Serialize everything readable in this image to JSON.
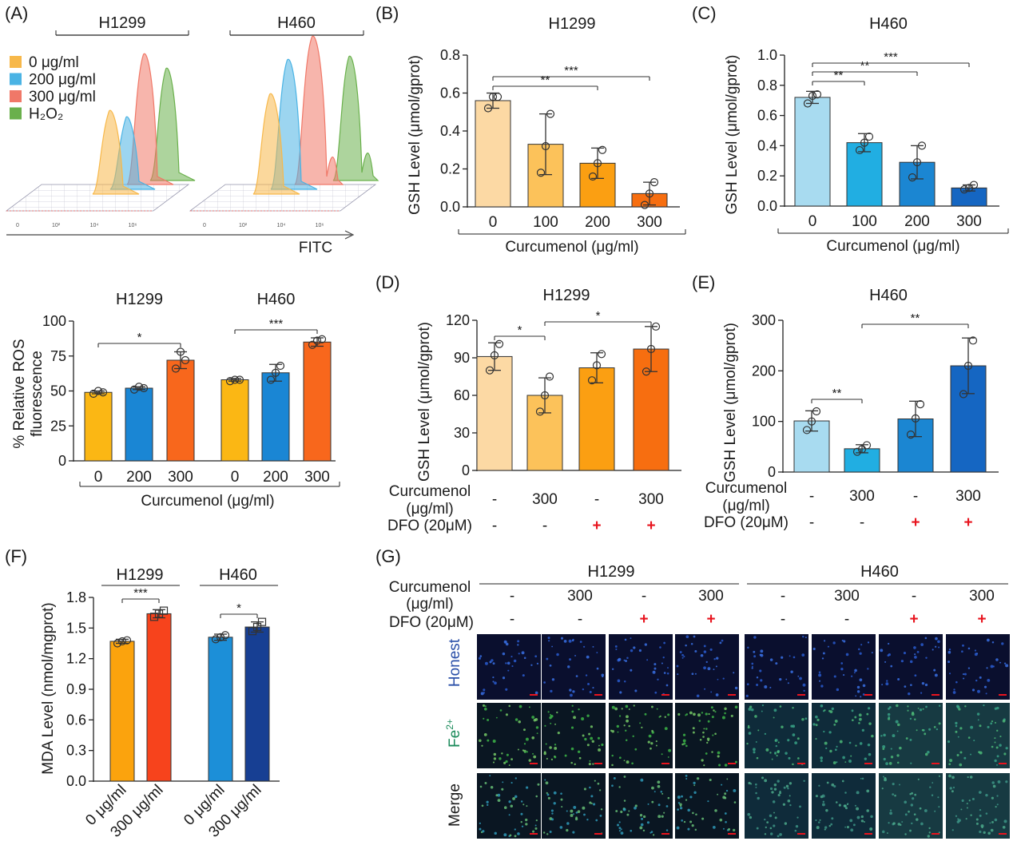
{
  "chart_data": [
    {
      "panel": "(A)",
      "type": "histogram",
      "subtype": "flow-cytometry-3d-overlay",
      "groups": [
        "H1299",
        "H460"
      ],
      "legend": [
        {
          "label": "0 μg/ml",
          "color": "#f7b84a"
        },
        {
          "label": "200 μg/ml",
          "color": "#4ab3e4"
        },
        {
          "label": "300 μg/ml",
          "color": "#f07868"
        },
        {
          "label": "H₂O₂",
          "color": "#6ab04c"
        }
      ],
      "xlabel": "FITC",
      "xticks": [
        "0",
        "10²",
        "10⁴",
        "10⁶"
      ]
    },
    {
      "panel": "(A) lower",
      "type": "bar",
      "ylabel": "% Relative ROS fluorescence",
      "xlabel": "Curcumenol (μg/ml)",
      "ylim": [
        0,
        100
      ],
      "yticks": [
        0,
        25,
        50,
        75,
        100
      ],
      "groups": [
        {
          "name": "H1299",
          "categories": [
            "0",
            "200",
            "300"
          ],
          "values": [
            49,
            52,
            72
          ],
          "errors": [
            1,
            1,
            6
          ],
          "points": [
            [
              48,
              50,
              49
            ],
            [
              51,
              53,
              52
            ],
            [
              66,
              78,
              72
            ]
          ],
          "colors": [
            "#fbb714",
            "#1a86d4",
            "#f8671c"
          ],
          "sig": [
            {
              "from": 0,
              "to": 2,
              "label": "*"
            }
          ]
        },
        {
          "name": "H460",
          "categories": [
            "0",
            "200",
            "300"
          ],
          "values": [
            58,
            63,
            85
          ],
          "errors": [
            1,
            6,
            3
          ],
          "points": [
            [
              57,
              58,
              58
            ],
            [
              58,
              63,
              68
            ],
            [
              83,
              86,
              87
            ]
          ],
          "colors": [
            "#fbb714",
            "#1a86d4",
            "#f8671c"
          ],
          "sig": [
            {
              "from": 0,
              "to": 2,
              "label": "***"
            }
          ]
        }
      ]
    },
    {
      "panel": "(B)",
      "type": "bar",
      "title": "H1299",
      "ylabel": "GSH Level (μmol/gprot)",
      "xlabel": "Curcumenol (μg/ml)",
      "ylim": [
        0,
        0.8
      ],
      "yticks": [
        0.0,
        0.2,
        0.4,
        0.6,
        0.8
      ],
      "categories": [
        "0",
        "100",
        "200",
        "300"
      ],
      "values": [
        0.56,
        0.33,
        0.23,
        0.07
      ],
      "errors": [
        0.04,
        0.16,
        0.08,
        0.06
      ],
      "points": [
        [
          0.52,
          0.58,
          0.58
        ],
        [
          0.18,
          0.32,
          0.49
        ],
        [
          0.16,
          0.23,
          0.3
        ],
        [
          0.01,
          0.07,
          0.13
        ]
      ],
      "colors": [
        "#fcd9a4",
        "#fcc25a",
        "#fb9f12",
        "#f76e10"
      ],
      "sig": [
        {
          "from": 0,
          "to": 2,
          "label": "**"
        },
        {
          "from": 0,
          "to": 3,
          "label": "***"
        }
      ]
    },
    {
      "panel": "(C)",
      "type": "bar",
      "title": "H460",
      "ylabel": "GSH Level (μmol/gprot)",
      "xlabel": "Curcumenol (μg/ml)",
      "ylim": [
        0,
        1.0
      ],
      "yticks": [
        0.0,
        0.2,
        0.4,
        0.6,
        0.8,
        1.0
      ],
      "categories": [
        "0",
        "100",
        "200",
        "300"
      ],
      "values": [
        0.72,
        0.42,
        0.29,
        0.12
      ],
      "errors": [
        0.04,
        0.06,
        0.11,
        0.02
      ],
      "points": [
        [
          0.68,
          0.73,
          0.74
        ],
        [
          0.37,
          0.42,
          0.46
        ],
        [
          0.19,
          0.29,
          0.4
        ],
        [
          0.11,
          0.12,
          0.14
        ]
      ],
      "colors": [
        "#a8dbf0",
        "#21aee2",
        "#1b86d2",
        "#1566c2"
      ],
      "sig": [
        {
          "from": 0,
          "to": 1,
          "label": "**"
        },
        {
          "from": 0,
          "to": 2,
          "label": "**"
        },
        {
          "from": 0,
          "to": 3,
          "label": "***"
        }
      ]
    },
    {
      "panel": "(D)",
      "type": "bar",
      "title": "H1299",
      "ylabel": "GSH Level (μmol/gprot)",
      "ylim": [
        0,
        120
      ],
      "yticks": [
        0,
        30,
        60,
        90,
        120
      ],
      "rows": [
        {
          "label": "Curcumenol",
          "unit": "(μg/ml)",
          "values": [
            "-",
            "300",
            "-",
            "300"
          ]
        },
        {
          "label": "DFO (20μM)",
          "values": [
            "-",
            "-",
            "+",
            "+"
          ]
        }
      ],
      "values": [
        91,
        60,
        82,
        97
      ],
      "errors": [
        11,
        14,
        12,
        18
      ],
      "points": [
        [
          80,
          92,
          101
        ],
        [
          47,
          60,
          75
        ],
        [
          72,
          84,
          93
        ],
        [
          79,
          97,
          115
        ]
      ],
      "colors": [
        "#fcd9a4",
        "#fcc25a",
        "#fb9f12",
        "#f76e10"
      ],
      "sig": [
        {
          "from": 0,
          "to": 1,
          "label": "*"
        },
        {
          "from": 1,
          "to": 3,
          "label": "*"
        }
      ]
    },
    {
      "panel": "(E)",
      "type": "bar",
      "title": "H460",
      "ylabel": "GSH Level (μmol/gprot)",
      "ylim": [
        0,
        300
      ],
      "yticks": [
        0,
        100,
        200,
        300
      ],
      "rows": [
        {
          "label": "Curcumenol",
          "unit": "(μg/ml)",
          "values": [
            "-",
            "300",
            "-",
            "300"
          ]
        },
        {
          "label": "DFO (20μM)",
          "values": [
            "-",
            "-",
            "+",
            "+"
          ]
        }
      ],
      "values": [
        101,
        46,
        105,
        210
      ],
      "errors": [
        20,
        8,
        35,
        55
      ],
      "points": [
        [
          83,
          100,
          120
        ],
        [
          40,
          45,
          53
        ],
        [
          74,
          106,
          134
        ],
        [
          154,
          210,
          260
        ]
      ],
      "colors": [
        "#a8dbf0",
        "#21aee2",
        "#1b86d2",
        "#1566c2"
      ],
      "sig": [
        {
          "from": 0,
          "to": 1,
          "label": "**"
        },
        {
          "from": 1,
          "to": 3,
          "label": "**"
        }
      ]
    },
    {
      "panel": "(F)",
      "type": "bar",
      "ylabel": "MDA Level (nmol/mgprot)",
      "ylim": [
        0,
        1.8
      ],
      "yticks": [
        0.0,
        0.3,
        0.6,
        0.9,
        1.2,
        1.5,
        1.8
      ],
      "groups": [
        {
          "name": "H1299",
          "categories": [
            "0 μg/ml",
            "300 μg/ml"
          ],
          "values": [
            1.37,
            1.64
          ],
          "errors": [
            0.02,
            0.04
          ],
          "points": [
            [
              1.35,
              1.37,
              1.38
            ],
            [
              1.61,
              1.64,
              1.67
            ]
          ],
          "colors": [
            "#fba30d",
            "#f7431c"
          ],
          "sig": [
            {
              "from": 0,
              "to": 1,
              "label": "***"
            }
          ]
        },
        {
          "name": "H460",
          "categories": [
            "0 μg/ml",
            "300 μg/ml"
          ],
          "values": [
            1.41,
            1.51
          ],
          "errors": [
            0.03,
            0.05
          ],
          "points": [
            [
              1.39,
              1.41,
              1.43
            ],
            [
              1.47,
              1.51,
              1.56
            ]
          ],
          "colors": [
            "#1c8fd8",
            "#173f93"
          ],
          "sig": [
            {
              "from": 0,
              "to": 1,
              "label": "*"
            }
          ]
        }
      ]
    },
    {
      "panel": "(G)",
      "type": "image-grid",
      "groups": [
        "H1299",
        "H460"
      ],
      "cond_rows": [
        {
          "label": "Curcumenol",
          "unit": "(μg/ml)",
          "values": [
            "-",
            "300",
            "-",
            "300",
            "-",
            "300",
            "-",
            "300"
          ]
        },
        {
          "label": "DFO (20μM)",
          "values": [
            "-",
            "-",
            "+",
            "+",
            "-",
            "-",
            "+",
            "+"
          ]
        }
      ],
      "stain_rows": [
        {
          "label": "Honest",
          "sup": "",
          "color": "#2a4fa8"
        },
        {
          "label": "Fe",
          "sup": "2+",
          "color": "#1a8a5a"
        },
        {
          "label": "Merge",
          "sup": "",
          "color": "#1a1a1a"
        }
      ]
    }
  ]
}
